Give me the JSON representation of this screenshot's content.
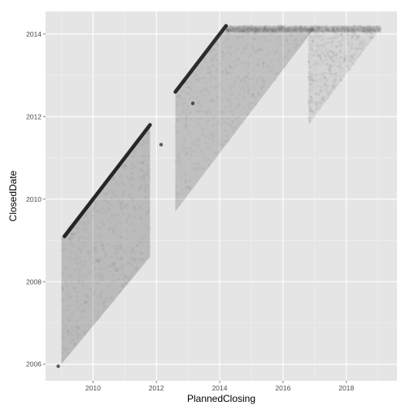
{
  "chart_data": {
    "type": "scatter",
    "xlabel": "PlannedClosing",
    "ylabel": "ClosedDate",
    "xlim": [
      2008.5,
      2019.6
    ],
    "ylim": [
      2005.6,
      2014.55
    ],
    "x_ticks": [
      2010,
      2012,
      2014,
      2016,
      2018
    ],
    "y_ticks": [
      2006,
      2008,
      2010,
      2012,
      2014
    ],
    "x_tick_labels": [
      "2010",
      "2012",
      "2014",
      "2016",
      "2018"
    ],
    "y_tick_labels": [
      "2006",
      "2008",
      "2010",
      "2012",
      "2014"
    ],
    "grid": true,
    "legend": "none",
    "point_color": "#000000",
    "panel_background": "#e5e5e5",
    "grid_color": "#ffffff",
    "point_alpha": 0.03,
    "density_regions": [
      {
        "name": "diagonal-line-1",
        "kind": "line",
        "x": [
          2009.1,
          2011.8
        ],
        "y": [
          2009.1,
          2011.8
        ],
        "opacity": 0.8
      },
      {
        "name": "diagonal-line-2",
        "kind": "line",
        "x": [
          2012.6,
          2014.2
        ],
        "y": [
          2012.6,
          2014.2
        ],
        "opacity": 0.8
      },
      {
        "name": "cloud-1",
        "kind": "polygon",
        "x": [
          2009.0,
          2011.8,
          2011.8,
          2009.0
        ],
        "y": [
          2009.1,
          2011.8,
          2008.6,
          2006.0
        ],
        "opacity": 0.18
      },
      {
        "name": "cloud-2",
        "kind": "polygon",
        "x": [
          2012.6,
          2014.2,
          2017.0,
          2012.6
        ],
        "y": [
          2012.6,
          2014.15,
          2014.15,
          2009.7
        ],
        "opacity": 0.16
      },
      {
        "name": "cloud-3",
        "kind": "polygon",
        "x": [
          2016.8,
          2019.1,
          2016.8
        ],
        "y": [
          2014.15,
          2014.15,
          2011.8
        ],
        "opacity": 0.07
      },
      {
        "name": "top-band",
        "kind": "polygon",
        "x": [
          2014.2,
          2019.1,
          2019.1,
          2014.2
        ],
        "y": [
          2014.2,
          2014.2,
          2014.05,
          2014.05
        ],
        "opacity": 0.15
      }
    ],
    "highlight_points": [
      {
        "x": 2012.15,
        "y": 2011.32
      },
      {
        "x": 2013.15,
        "y": 2012.32
      },
      {
        "x": 2008.9,
        "y": 2005.95
      }
    ]
  }
}
